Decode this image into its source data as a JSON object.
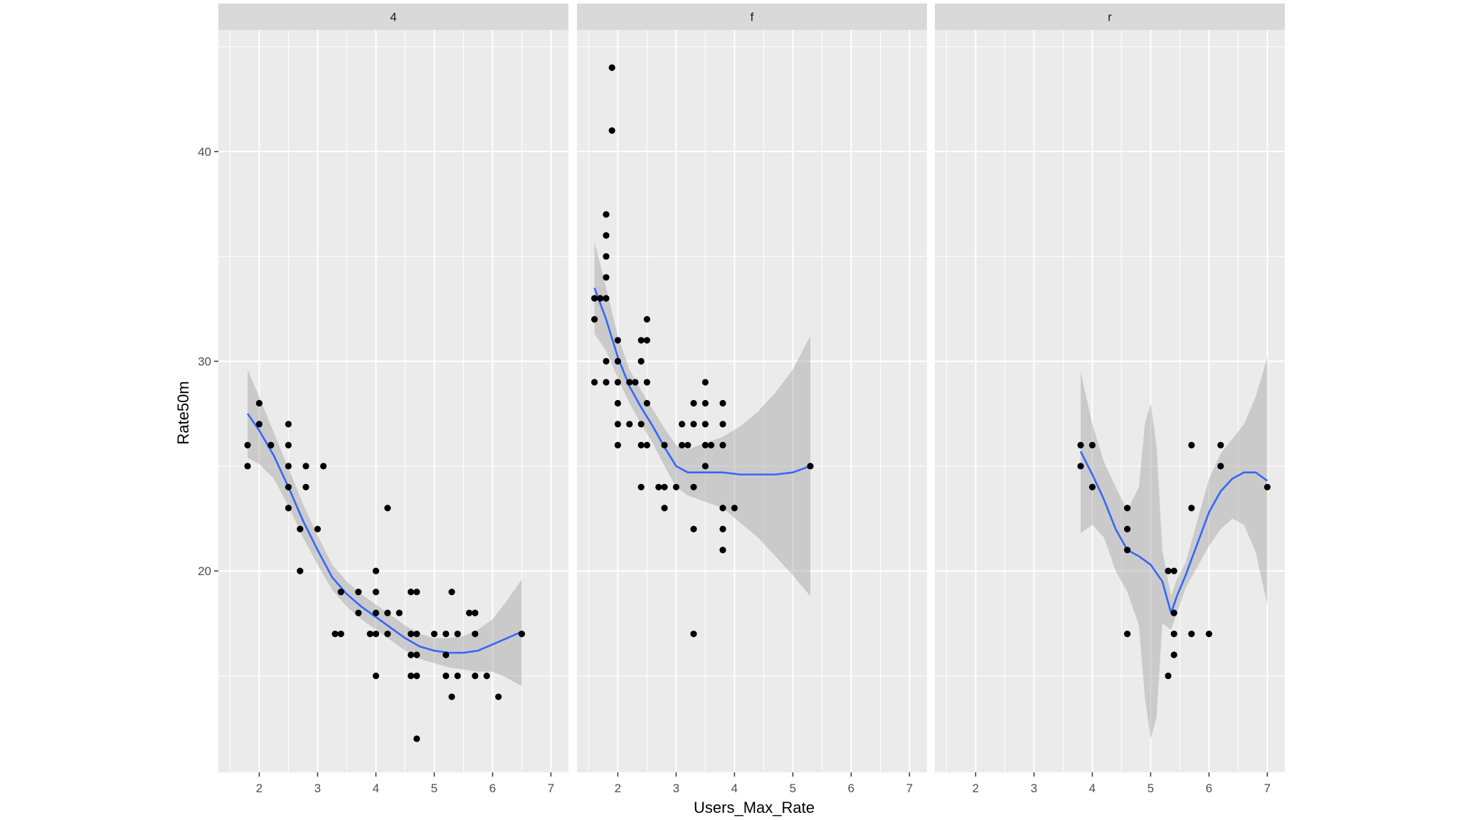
{
  "chart_data": {
    "type": "scatter",
    "facet_variable_values": [
      "4",
      "f",
      "r"
    ],
    "xlabel": "Users_Max_Rate",
    "ylabel": "Rate50m",
    "xlim": [
      1.3,
      7.3
    ],
    "ylim": [
      10.4,
      45.8
    ],
    "x_ticks": [
      2,
      3,
      4,
      5,
      6,
      7
    ],
    "y_ticks": [
      20,
      30,
      40
    ],
    "grid": true,
    "colors": {
      "panel_bg": "#ebebeb",
      "strip_bg": "#d9d9d9",
      "grid": "#ffffff",
      "points": "#000000",
      "smooth_line": "#3366ff",
      "ribbon": "#999999"
    },
    "panels": [
      {
        "name": "4",
        "points": [
          [
            1.8,
            26
          ],
          [
            1.8,
            25
          ],
          [
            2.0,
            28
          ],
          [
            2.0,
            27
          ],
          [
            2.2,
            26
          ],
          [
            2.5,
            27
          ],
          [
            2.5,
            26
          ],
          [
            2.5,
            25
          ],
          [
            2.5,
            24
          ],
          [
            2.5,
            23
          ],
          [
            2.7,
            22
          ],
          [
            2.7,
            20
          ],
          [
            2.8,
            25
          ],
          [
            2.8,
            24
          ],
          [
            3.0,
            22
          ],
          [
            3.1,
            25
          ],
          [
            3.3,
            17
          ],
          [
            3.4,
            17
          ],
          [
            3.4,
            19
          ],
          [
            3.7,
            19
          ],
          [
            3.7,
            18
          ],
          [
            3.9,
            17
          ],
          [
            4.0,
            17
          ],
          [
            4.0,
            18
          ],
          [
            4.0,
            19
          ],
          [
            4.0,
            20
          ],
          [
            4.0,
            15
          ],
          [
            4.2,
            23
          ],
          [
            4.2,
            18
          ],
          [
            4.2,
            17
          ],
          [
            4.4,
            18
          ],
          [
            4.6,
            17
          ],
          [
            4.6,
            16
          ],
          [
            4.6,
            15
          ],
          [
            4.6,
            19
          ],
          [
            4.7,
            17
          ],
          [
            4.7,
            16
          ],
          [
            4.7,
            15
          ],
          [
            4.7,
            19
          ],
          [
            4.7,
            12
          ],
          [
            5.0,
            17
          ],
          [
            5.2,
            17
          ],
          [
            5.2,
            16
          ],
          [
            5.2,
            15
          ],
          [
            5.3,
            19
          ],
          [
            5.3,
            14
          ],
          [
            5.4,
            17
          ],
          [
            5.4,
            15
          ],
          [
            5.6,
            18
          ],
          [
            5.7,
            18
          ],
          [
            5.7,
            17
          ],
          [
            5.7,
            15
          ],
          [
            5.9,
            15
          ],
          [
            6.1,
            14
          ],
          [
            6.5,
            17
          ]
        ],
        "smooth": [
          [
            1.8,
            27.5
          ],
          [
            2.0,
            26.7
          ],
          [
            2.25,
            25.5
          ],
          [
            2.5,
            24.0
          ],
          [
            2.75,
            22.4
          ],
          [
            3.0,
            21.0
          ],
          [
            3.25,
            19.7
          ],
          [
            3.5,
            18.9
          ],
          [
            3.75,
            18.3
          ],
          [
            4.0,
            17.8
          ],
          [
            4.25,
            17.3
          ],
          [
            4.5,
            16.8
          ],
          [
            4.75,
            16.4
          ],
          [
            5.0,
            16.2
          ],
          [
            5.25,
            16.1
          ],
          [
            5.5,
            16.1
          ],
          [
            5.75,
            16.2
          ],
          [
            6.0,
            16.5
          ],
          [
            6.25,
            16.8
          ],
          [
            6.5,
            17.1
          ]
        ],
        "ribbon_upper": [
          [
            1.8,
            29.6
          ],
          [
            2.0,
            28.3
          ],
          [
            2.25,
            26.6
          ],
          [
            2.5,
            24.9
          ],
          [
            2.75,
            23.2
          ],
          [
            3.0,
            21.7
          ],
          [
            3.25,
            20.3
          ],
          [
            3.5,
            19.5
          ],
          [
            3.75,
            18.9
          ],
          [
            4.0,
            18.4
          ],
          [
            4.25,
            17.9
          ],
          [
            4.5,
            17.4
          ],
          [
            4.75,
            17.0
          ],
          [
            5.0,
            16.8
          ],
          [
            5.25,
            16.8
          ],
          [
            5.5,
            16.9
          ],
          [
            5.75,
            17.2
          ],
          [
            6.0,
            17.7
          ],
          [
            6.25,
            18.6
          ],
          [
            6.5,
            19.6
          ]
        ],
        "ribbon_lower": [
          [
            1.8,
            25.4
          ],
          [
            2.0,
            25.1
          ],
          [
            2.25,
            24.4
          ],
          [
            2.5,
            23.1
          ],
          [
            2.75,
            21.6
          ],
          [
            3.0,
            20.3
          ],
          [
            3.25,
            19.1
          ],
          [
            3.5,
            18.3
          ],
          [
            3.75,
            17.7
          ],
          [
            4.0,
            17.2
          ],
          [
            4.25,
            16.7
          ],
          [
            4.5,
            16.2
          ],
          [
            4.75,
            15.8
          ],
          [
            5.0,
            15.6
          ],
          [
            5.25,
            15.4
          ],
          [
            5.5,
            15.3
          ],
          [
            5.75,
            15.2
          ],
          [
            6.0,
            15.2
          ],
          [
            6.25,
            14.9
          ],
          [
            6.5,
            14.5
          ]
        ]
      },
      {
        "name": "f",
        "points": [
          [
            1.6,
            33
          ],
          [
            1.6,
            32
          ],
          [
            1.6,
            29
          ],
          [
            1.7,
            33
          ],
          [
            1.8,
            37
          ],
          [
            1.8,
            36
          ],
          [
            1.8,
            35
          ],
          [
            1.8,
            34
          ],
          [
            1.8,
            33
          ],
          [
            1.8,
            30
          ],
          [
            1.8,
            29
          ],
          [
            1.9,
            44
          ],
          [
            1.9,
            41
          ],
          [
            2.0,
            31
          ],
          [
            2.0,
            30
          ],
          [
            2.0,
            29
          ],
          [
            2.0,
            28
          ],
          [
            2.0,
            27
          ],
          [
            2.0,
            26
          ],
          [
            2.2,
            29
          ],
          [
            2.2,
            27
          ],
          [
            2.3,
            29
          ],
          [
            2.4,
            31
          ],
          [
            2.4,
            30
          ],
          [
            2.4,
            27
          ],
          [
            2.4,
            26
          ],
          [
            2.4,
            24
          ],
          [
            2.5,
            32
          ],
          [
            2.5,
            31
          ],
          [
            2.5,
            29
          ],
          [
            2.5,
            28
          ],
          [
            2.5,
            26
          ],
          [
            2.7,
            24
          ],
          [
            2.8,
            26
          ],
          [
            2.8,
            24
          ],
          [
            2.8,
            23
          ],
          [
            3.0,
            24
          ],
          [
            3.1,
            27
          ],
          [
            3.1,
            26
          ],
          [
            3.2,
            26
          ],
          [
            3.3,
            28
          ],
          [
            3.3,
            27
          ],
          [
            3.3,
            24
          ],
          [
            3.3,
            22
          ],
          [
            3.3,
            17
          ],
          [
            3.5,
            29
          ],
          [
            3.5,
            28
          ],
          [
            3.5,
            27
          ],
          [
            3.5,
            26
          ],
          [
            3.5,
            25
          ],
          [
            3.6,
            26
          ],
          [
            3.8,
            28
          ],
          [
            3.8,
            27
          ],
          [
            3.8,
            26
          ],
          [
            3.8,
            23
          ],
          [
            3.8,
            22
          ],
          [
            3.8,
            21
          ],
          [
            4.0,
            23
          ],
          [
            5.3,
            25
          ]
        ],
        "smooth": [
          [
            1.6,
            33.5
          ],
          [
            1.8,
            32.0
          ],
          [
            2.0,
            30.2
          ],
          [
            2.2,
            28.8
          ],
          [
            2.4,
            27.8
          ],
          [
            2.6,
            26.9
          ],
          [
            2.8,
            25.9
          ],
          [
            3.0,
            25.0
          ],
          [
            3.2,
            24.7
          ],
          [
            3.5,
            24.7
          ],
          [
            3.8,
            24.7
          ],
          [
            4.1,
            24.6
          ],
          [
            4.4,
            24.6
          ],
          [
            4.7,
            24.6
          ],
          [
            5.0,
            24.7
          ],
          [
            5.3,
            25.0
          ]
        ],
        "ribbon_upper": [
          [
            1.6,
            35.7
          ],
          [
            1.8,
            33.5
          ],
          [
            2.0,
            31.2
          ],
          [
            2.2,
            29.6
          ],
          [
            2.4,
            28.6
          ],
          [
            2.6,
            27.7
          ],
          [
            2.8,
            26.8
          ],
          [
            3.0,
            26.0
          ],
          [
            3.2,
            25.8
          ],
          [
            3.5,
            26.1
          ],
          [
            3.8,
            26.4
          ],
          [
            4.1,
            26.9
          ],
          [
            4.4,
            27.6
          ],
          [
            4.7,
            28.5
          ],
          [
            5.0,
            29.6
          ],
          [
            5.3,
            31.2
          ]
        ],
        "ribbon_lower": [
          [
            1.6,
            31.3
          ],
          [
            1.8,
            30.5
          ],
          [
            2.0,
            29.2
          ],
          [
            2.2,
            28.0
          ],
          [
            2.4,
            27.0
          ],
          [
            2.6,
            26.1
          ],
          [
            2.8,
            25.0
          ],
          [
            3.0,
            24.0
          ],
          [
            3.2,
            23.6
          ],
          [
            3.5,
            23.3
          ],
          [
            3.8,
            23.0
          ],
          [
            4.1,
            22.3
          ],
          [
            4.4,
            21.6
          ],
          [
            4.7,
            20.7
          ],
          [
            5.0,
            19.8
          ],
          [
            5.3,
            18.8
          ]
        ]
      },
      {
        "name": "r",
        "points": [
          [
            3.8,
            26
          ],
          [
            3.8,
            25
          ],
          [
            4.0,
            26
          ],
          [
            4.0,
            24
          ],
          [
            4.6,
            23
          ],
          [
            4.6,
            22
          ],
          [
            4.6,
            21
          ],
          [
            4.6,
            17
          ],
          [
            5.3,
            20
          ],
          [
            5.3,
            15
          ],
          [
            5.4,
            20
          ],
          [
            5.4,
            18
          ],
          [
            5.4,
            17
          ],
          [
            5.4,
            16
          ],
          [
            5.7,
            26
          ],
          [
            5.7,
            23
          ],
          [
            5.7,
            17
          ],
          [
            6.0,
            17
          ],
          [
            6.2,
            26
          ],
          [
            6.2,
            25
          ],
          [
            7.0,
            24
          ]
        ],
        "smooth": [
          [
            3.8,
            25.7
          ],
          [
            4.0,
            24.6
          ],
          [
            4.2,
            23.4
          ],
          [
            4.4,
            22.0
          ],
          [
            4.6,
            21.0
          ],
          [
            4.8,
            20.7
          ],
          [
            5.0,
            20.3
          ],
          [
            5.2,
            19.5
          ],
          [
            5.35,
            18.0
          ],
          [
            5.45,
            18.8
          ],
          [
            5.6,
            19.8
          ],
          [
            5.8,
            21.3
          ],
          [
            6.0,
            22.8
          ],
          [
            6.2,
            23.8
          ],
          [
            6.4,
            24.4
          ],
          [
            6.6,
            24.7
          ],
          [
            6.8,
            24.7
          ],
          [
            7.0,
            24.3
          ]
        ],
        "ribbon_upper": [
          [
            3.8,
            29.5
          ],
          [
            4.0,
            27.0
          ],
          [
            4.2,
            25.2
          ],
          [
            4.4,
            24.0
          ],
          [
            4.6,
            22.9
          ],
          [
            4.8,
            24.0
          ],
          [
            4.9,
            27.0
          ],
          [
            5.0,
            28.0
          ],
          [
            5.1,
            26.0
          ],
          [
            5.2,
            21.0
          ],
          [
            5.35,
            18.8
          ],
          [
            5.45,
            19.6
          ],
          [
            5.6,
            20.4
          ],
          [
            5.8,
            22.4
          ],
          [
            6.0,
            24.4
          ],
          [
            6.2,
            25.6
          ],
          [
            6.4,
            26.3
          ],
          [
            6.6,
            27.0
          ],
          [
            6.8,
            28.3
          ],
          [
            7.0,
            30.2
          ]
        ],
        "ribbon_lower": [
          [
            3.8,
            21.8
          ],
          [
            4.0,
            22.2
          ],
          [
            4.2,
            21.6
          ],
          [
            4.4,
            20.0
          ],
          [
            4.6,
            19.0
          ],
          [
            4.8,
            17.4
          ],
          [
            4.9,
            14.0
          ],
          [
            5.0,
            12.0
          ],
          [
            5.1,
            13.0
          ],
          [
            5.2,
            17.5
          ],
          [
            5.35,
            17.2
          ],
          [
            5.45,
            18.0
          ],
          [
            5.6,
            19.2
          ],
          [
            5.8,
            20.2
          ],
          [
            6.0,
            21.2
          ],
          [
            6.2,
            22.0
          ],
          [
            6.4,
            22.5
          ],
          [
            6.6,
            22.2
          ],
          [
            6.8,
            20.9
          ],
          [
            7.0,
            18.4
          ]
        ]
      }
    ]
  }
}
